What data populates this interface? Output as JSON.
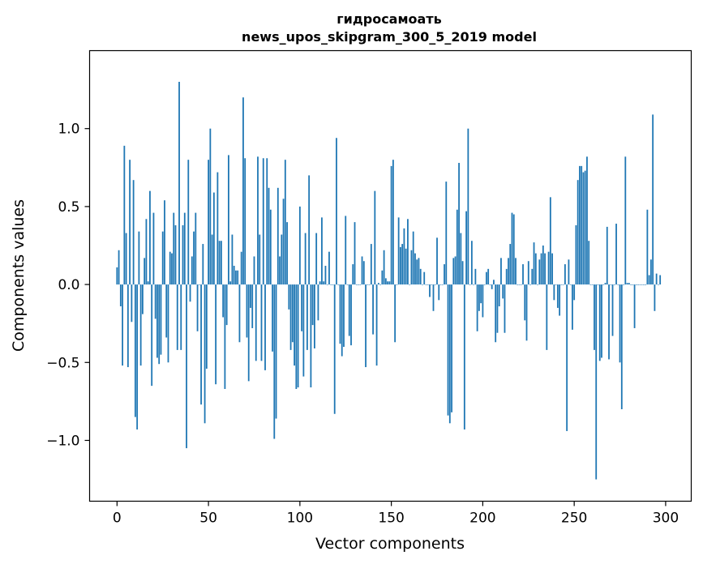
{
  "chart_data": {
    "type": "bar",
    "title": "гидросамоать",
    "subtitle": "news_upos_skipgram_300_5_2019 model",
    "xlabel": "Vector components",
    "ylabel": "Components values",
    "xlim": [
      -15,
      314
    ],
    "ylim": [
      -1.39,
      1.5
    ],
    "xticks": [
      0,
      50,
      100,
      150,
      200,
      250,
      300
    ],
    "xtick_labels": [
      "0",
      "50",
      "100",
      "150",
      "200",
      "250",
      "300"
    ],
    "yticks": [
      -1.0,
      -0.5,
      0.0,
      0.5,
      1.0
    ],
    "ytick_labels": [
      "−1.0",
      "−0.5",
      "0.0",
      "0.5",
      "1.0"
    ],
    "bar_color": "#1f77b4",
    "grid": false,
    "values": [
      0.11,
      0.22,
      -0.14,
      -0.52,
      0.89,
      0.33,
      -0.53,
      0.8,
      -0.24,
      0.67,
      -0.85,
      -0.93,
      0.34,
      -0.52,
      -0.19,
      0.17,
      0.42,
      0.02,
      0.6,
      -0.65,
      0.46,
      -0.22,
      -0.47,
      -0.51,
      -0.45,
      0.34,
      0.54,
      -0.34,
      -0.5,
      0.21,
      0.2,
      0.46,
      0.38,
      -0.42,
      1.3,
      -0.42,
      0.38,
      0.46,
      -1.05,
      0.8,
      -0.11,
      0.18,
      0.34,
      0.46,
      -0.3,
      0.0,
      -0.77,
      0.26,
      -0.89,
      -0.54,
      0.8,
      1.0,
      0.32,
      0.59,
      -0.64,
      0.72,
      0.28,
      0.28,
      -0.21,
      -0.67,
      -0.26,
      0.83,
      0.02,
      0.32,
      0.12,
      0.09,
      0.09,
      -0.37,
      0.21,
      1.2,
      0.81,
      -0.34,
      -0.62,
      -0.15,
      -0.28,
      0.18,
      -0.49,
      0.82,
      0.32,
      -0.49,
      0.81,
      -0.55,
      0.81,
      0.62,
      0.48,
      -0.43,
      -0.99,
      -0.86,
      0.62,
      0.18,
      0.32,
      0.55,
      0.8,
      0.4,
      -0.16,
      -0.42,
      -0.37,
      -0.52,
      -0.67,
      -0.66,
      0.5,
      -0.3,
      -0.59,
      0.33,
      -0.42,
      0.7,
      -0.66,
      -0.26,
      -0.41,
      0.33,
      -0.23,
      0.02,
      0.43,
      0.02,
      0.12,
      0.0,
      0.21,
      0.0,
      0.0,
      -0.83,
      0.94,
      0.0,
      -0.38,
      -0.46,
      -0.4,
      0.44,
      0.0,
      -0.33,
      -0.39,
      0.13,
      0.4,
      0.0,
      0.0,
      0.0,
      0.18,
      0.15,
      -0.53,
      0.0,
      0.0,
      0.26,
      -0.32,
      0.6,
      -0.52,
      0.01,
      0.0,
      0.09,
      0.22,
      0.04,
      0.02,
      0.02,
      0.76,
      0.8,
      -0.37,
      0.0,
      0.43,
      0.24,
      0.26,
      0.36,
      0.23,
      0.42,
      0.0,
      0.22,
      0.34,
      0.2,
      0.16,
      0.17,
      0.1,
      0.0,
      0.08,
      0.0,
      0.0,
      -0.08,
      0.0,
      -0.17,
      0.0,
      0.3,
      -0.1,
      0.0,
      0.0,
      0.13,
      0.66,
      -0.84,
      -0.89,
      -0.82,
      0.17,
      0.18,
      0.48,
      0.78,
      0.33,
      0.15,
      -0.93,
      0.47,
      1.0,
      0.0,
      0.28,
      0.0,
      0.1,
      -0.3,
      -0.17,
      -0.12,
      -0.21,
      0.0,
      0.08,
      0.1,
      0.0,
      -0.03,
      0.03,
      -0.37,
      -0.31,
      -0.14,
      0.17,
      -0.09,
      -0.31,
      0.1,
      0.17,
      0.26,
      0.46,
      0.45,
      0.17,
      0.0,
      0.0,
      0.0,
      0.13,
      -0.23,
      -0.36,
      0.15,
      0.0,
      0.1,
      0.27,
      0.2,
      0.0,
      0.16,
      0.2,
      0.25,
      0.2,
      -0.42,
      0.21,
      0.56,
      0.2,
      -0.1,
      0.0,
      -0.15,
      -0.2,
      0.0,
      0.0,
      0.13,
      -0.94,
      0.16,
      0.0,
      -0.29,
      -0.1,
      0.38,
      0.67,
      0.76,
      0.76,
      0.72,
      0.73,
      0.82,
      0.28,
      0.0,
      0.0,
      -0.42,
      -1.25,
      0.0,
      -0.49,
      -0.47,
      0.0,
      0.01,
      0.37,
      -0.48,
      0.0,
      -0.33,
      0.0,
      0.39,
      0.0,
      -0.5,
      -0.8,
      0.0,
      0.82,
      0.01,
      0.01,
      0.0,
      0.0,
      -0.28,
      0.0,
      0.0,
      0.0,
      0.0,
      0.0,
      0.0,
      0.48,
      0.06,
      0.16,
      1.09,
      -0.17,
      0.07,
      0.0,
      0.06
    ]
  }
}
